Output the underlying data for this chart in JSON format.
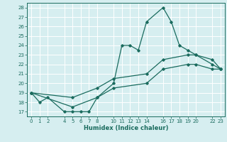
{
  "xlabel": "Humidex (Indice chaleur)",
  "bg_color": "#d6eef0",
  "line_color": "#1a6b5e",
  "grid_color": "#ffffff",
  "ylim": [
    16.5,
    28.5
  ],
  "xlim": [
    -0.5,
    23.5
  ],
  "yticks": [
    17,
    18,
    19,
    20,
    21,
    22,
    23,
    24,
    25,
    26,
    27,
    28
  ],
  "xticks": [
    0,
    1,
    2,
    4,
    5,
    6,
    7,
    8,
    10,
    11,
    12,
    13,
    14,
    16,
    17,
    18,
    19,
    20,
    22,
    23
  ],
  "xtick_labels": [
    "0",
    "1",
    "2",
    "4",
    "5",
    "6",
    "7",
    "8",
    "10",
    "11",
    "12",
    "13",
    "14",
    "16",
    "17",
    "18",
    "19",
    "20",
    "22",
    "23"
  ],
  "line1_x": [
    0,
    1,
    2,
    4,
    5,
    6,
    7,
    8,
    10,
    11,
    12,
    13,
    14,
    16,
    17,
    18,
    19,
    20,
    22,
    23
  ],
  "line1_y": [
    19,
    18,
    18.5,
    17,
    17,
    17,
    17,
    18.5,
    20,
    24,
    24,
    23.5,
    26.5,
    28,
    26.5,
    24,
    23.5,
    23,
    22,
    21.5
  ],
  "line2_x": [
    0,
    5,
    8,
    10,
    14,
    16,
    19,
    20,
    22,
    23
  ],
  "line2_y": [
    19,
    18.5,
    19.5,
    20.5,
    21,
    22.5,
    23,
    23,
    22.5,
    21.5
  ],
  "line3_x": [
    0,
    5,
    8,
    10,
    14,
    16,
    19,
    20,
    22,
    23
  ],
  "line3_y": [
    19,
    17.5,
    18.5,
    19.5,
    20,
    21.5,
    22,
    22,
    21.5,
    21.5
  ]
}
